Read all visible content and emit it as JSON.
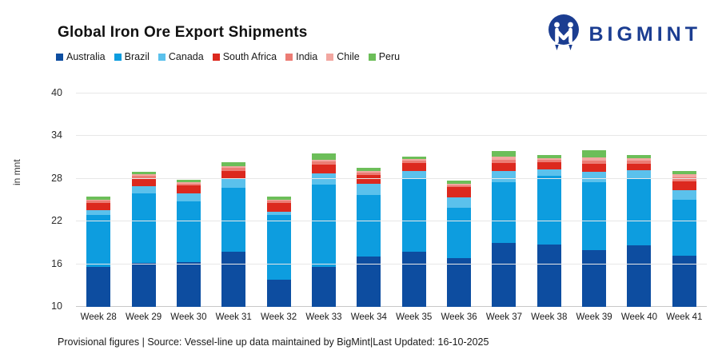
{
  "header": {
    "title": "Global Iron Ore Export Shipments",
    "logo_text": "BIGMINT",
    "logo_color": "#1b3d91"
  },
  "footer": {
    "note": "Provisional figures | Source: Vessel-line up data maintained by BigMint|Last Updated: 16-10-2025"
  },
  "chart_data": {
    "type": "bar",
    "stacked": true,
    "title": "Global Iron Ore Export Shipments",
    "ylabel": "in mnt",
    "xlabel": "",
    "ylim": [
      10,
      41
    ],
    "baseline": 10,
    "yticks": [
      10,
      16,
      22,
      28,
      34,
      40
    ],
    "grid": "horizontal",
    "legend_position": "top-left",
    "categories": [
      "Week 28",
      "Week 29",
      "Week 30",
      "Week 31",
      "Week 32",
      "Week 33",
      "Week 34",
      "Week 35",
      "Week 36",
      "Week 37",
      "Week 38",
      "Week 39",
      "Week 40",
      "Week 41"
    ],
    "series": [
      {
        "name": "Australia",
        "color": "#0D4DA0",
        "values": [
          15.6,
          16.2,
          16.3,
          17.8,
          13.8,
          15.6,
          17.1,
          17.8,
          16.9,
          19.0,
          18.8,
          18.0,
          18.6,
          17.2
        ]
      },
      {
        "name": "Brazil",
        "color": "#0D9DDF",
        "values": [
          7.3,
          9.8,
          8.5,
          8.9,
          9.1,
          11.6,
          8.6,
          10.2,
          7.0,
          8.5,
          9.6,
          9.5,
          9.4,
          7.9
        ]
      },
      {
        "name": "Canada",
        "color": "#5BC1EC",
        "values": [
          0.7,
          1.0,
          1.2,
          1.3,
          0.5,
          1.6,
          1.6,
          1.1,
          1.5,
          1.6,
          0.9,
          1.5,
          1.2,
          1.3
        ]
      },
      {
        "name": "South Africa",
        "color": "#DC291E",
        "values": [
          1.0,
          1.1,
          1.1,
          1.1,
          1.2,
          1.2,
          1.2,
          1.1,
          1.4,
          1.1,
          1.0,
          1.1,
          0.9,
          1.2
        ]
      },
      {
        "name": "India",
        "color": "#EC7C74",
        "values": [
          0.3,
          0.3,
          0.25,
          0.4,
          0.3,
          0.4,
          0.35,
          0.35,
          0.3,
          0.5,
          0.35,
          0.5,
          0.45,
          0.6
        ]
      },
      {
        "name": "Chile",
        "color": "#F2A7A1",
        "values": [
          0.2,
          0.2,
          0.15,
          0.3,
          0.2,
          0.3,
          0.25,
          0.25,
          0.2,
          0.4,
          0.25,
          0.4,
          0.35,
          0.4
        ]
      },
      {
        "name": "Peru",
        "color": "#6CBE59",
        "values": [
          0.4,
          0.4,
          0.35,
          0.5,
          0.4,
          0.9,
          0.4,
          0.3,
          0.4,
          0.8,
          0.4,
          1.0,
          0.5,
          0.5
        ]
      }
    ],
    "totals": [
      25.5,
      29.0,
      27.85,
      30.3,
      25.5,
      31.6,
      29.5,
      31.1,
      27.7,
      31.9,
      31.3,
      32.0,
      31.4,
      29.1
    ]
  }
}
